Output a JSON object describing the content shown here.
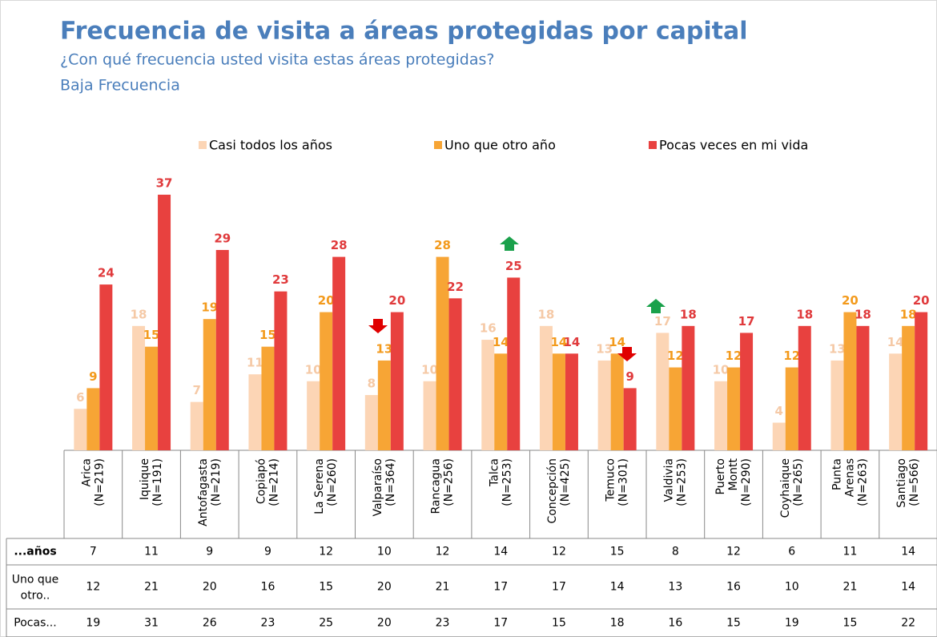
{
  "chart_data": {
    "type": "bar",
    "title": "Frecuencia de visita a áreas protegidas por capital",
    "subtitle": "¿Con qué frecuencia usted visita estas áreas protegidas?",
    "subtitle2": "Baja Frecuencia",
    "categories": [
      [
        "Arica",
        "(N=219)"
      ],
      [
        "Iquique",
        "(N=191)"
      ],
      [
        "Antofagasta",
        "(N=219)"
      ],
      [
        "Copiapó",
        "(N=214)"
      ],
      [
        "La Serena",
        "(N=260)"
      ],
      [
        "Valparaíso",
        "(N=364)"
      ],
      [
        "Rancagua",
        "(N=256)"
      ],
      [
        "Talca",
        "(N=253)"
      ],
      [
        "Concepción",
        "(N=425)"
      ],
      [
        "Temuco",
        "(N=301)"
      ],
      [
        "Valdivia",
        "(N=253)"
      ],
      [
        "Puerto",
        "Montt",
        "(N=290)"
      ],
      [
        "Coyhaique",
        "(N=265)"
      ],
      [
        "Punta",
        "Arenas",
        "(N=263)"
      ],
      [
        "Santiago",
        "(N=566)"
      ]
    ],
    "series": [
      {
        "name": "Casi todos los años",
        "color": "#fcd5b5",
        "label_color": "#f5c9a6",
        "values": [
          6,
          18,
          7,
          11,
          10,
          8,
          10,
          16,
          18,
          13,
          17,
          10,
          4,
          13,
          14
        ]
      },
      {
        "name": "Uno que otro año",
        "color": "#f7a535",
        "label_color": "#f39a1c",
        "values": [
          9,
          15,
          19,
          15,
          20,
          13,
          28,
          14,
          14,
          14,
          12,
          12,
          12,
          20,
          18
        ]
      },
      {
        "name": "Pocas veces en mi vida",
        "color": "#e8413f",
        "label_color": "#e03a3c",
        "values": [
          24,
          37,
          29,
          23,
          28,
          20,
          22,
          25,
          14,
          9,
          18,
          17,
          18,
          18,
          20
        ]
      }
    ]
  },
  "table": {
    "rows": [
      {
        "label": "...años",
        "values": [
          7,
          11,
          9,
          9,
          12,
          10,
          12,
          14,
          12,
          15,
          8,
          12,
          6,
          11,
          14
        ]
      },
      {
        "label": "Uno que otro..",
        "values": [
          12,
          21,
          20,
          16,
          15,
          20,
          21,
          17,
          17,
          14,
          13,
          16,
          10,
          21,
          14
        ]
      },
      {
        "label": "Pocas...",
        "values": [
          19,
          31,
          26,
          23,
          25,
          20,
          23,
          17,
          15,
          18,
          16,
          15,
          19,
          15,
          22
        ]
      }
    ]
  }
}
